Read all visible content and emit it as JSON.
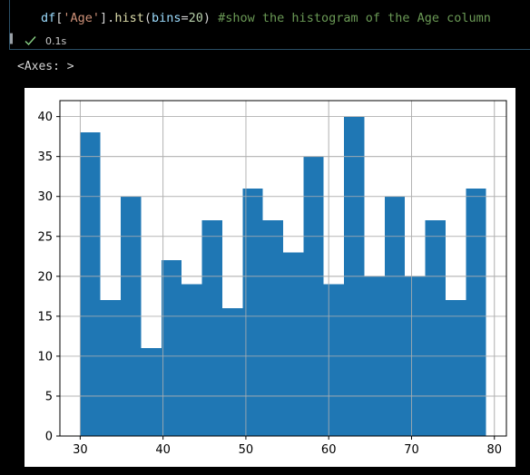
{
  "cell": {
    "code": {
      "df": "df",
      "key": "'Age'",
      "method": "hist",
      "arg_name": "bins",
      "arg_value": "20",
      "comment": "#show the histogram of the Age column"
    },
    "status_icon": "check-icon",
    "exec_time": "0.1s"
  },
  "output": {
    "text": "<Axes: >"
  },
  "chart_data": {
    "type": "bar",
    "bins": 20,
    "bin_edges": [
      30,
      32.45,
      34.9,
      37.35,
      39.8,
      42.25,
      44.7,
      47.15,
      49.6,
      52.05,
      54.5,
      56.95,
      59.4,
      61.85,
      64.3,
      66.75,
      69.2,
      71.65,
      74.1,
      76.55,
      79
    ],
    "values": [
      38,
      17,
      30,
      11,
      22,
      19,
      27,
      16,
      31,
      27,
      23,
      35,
      19,
      40,
      20,
      30,
      20,
      27,
      17,
      31
    ],
    "xlim": [
      27.55,
      81.45
    ],
    "ylim": [
      0,
      42
    ],
    "x_ticks": [
      30,
      40,
      50,
      60,
      70,
      80
    ],
    "y_ticks": [
      0,
      5,
      10,
      15,
      20,
      25,
      30,
      35,
      40
    ],
    "x_tick_labels": [
      "30",
      "40",
      "50",
      "60",
      "70",
      "80"
    ],
    "y_tick_labels": [
      "0",
      "5",
      "10",
      "15",
      "20",
      "25",
      "30",
      "35",
      "40"
    ],
    "grid": true,
    "bar_color": "#1f77b4",
    "title": "",
    "xlabel": "",
    "ylabel": ""
  }
}
